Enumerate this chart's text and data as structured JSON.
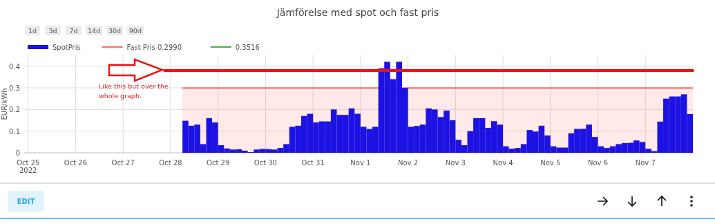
{
  "chart_data": {
    "type": "bar",
    "title": "Jämförelse med spot och fast pris",
    "ylabel": "EUR/kWh",
    "annotations": [
      "1d",
      "3d",
      "7d",
      "14d",
      "30d",
      "90d",
      "Like this but over the whole graph.",
      "EDIT"
    ],
    "xlim": [
      "2022-10-24T22:00",
      "2022-11-08T00:00"
    ],
    "xticks": [
      {
        "value": "2022-10-25",
        "label": "Oct 25\n2022"
      },
      {
        "value": "2022-10-26",
        "label": "Oct 26"
      },
      {
        "value": "2022-10-27",
        "label": "Oct 27"
      },
      {
        "value": "2022-10-28",
        "label": "Oct 28"
      },
      {
        "value": "2022-10-29",
        "label": "Oct 29"
      },
      {
        "value": "2022-10-30",
        "label": "Oct 30"
      },
      {
        "value": "2022-10-31",
        "label": "Oct 31"
      },
      {
        "value": "2022-11-01",
        "label": "Nov 1"
      },
      {
        "value": "2022-11-02",
        "label": "Nov 2"
      },
      {
        "value": "2022-11-03",
        "label": "Nov 3"
      },
      {
        "value": "2022-11-04",
        "label": "Nov 4"
      },
      {
        "value": "2022-11-05",
        "label": "Nov 5"
      },
      {
        "value": "2022-11-06",
        "label": "Nov 6"
      },
      {
        "value": "2022-11-07",
        "label": "Nov 7"
      }
    ],
    "ylim": [
      0,
      0.45
    ],
    "yticks": [
      0,
      0.1,
      0.2,
      0.3,
      0.4
    ],
    "grid": true,
    "legend": "top left",
    "series": [
      {
        "name": "SpotPris",
        "color": "#1c12e3",
        "x": [
          "2022-10-28T06:00",
          "2022-10-28T09:00",
          "2022-10-28T12:00",
          "2022-10-28T15:00",
          "2022-10-28T18:00",
          "2022-10-28T21:00",
          "2022-10-29T00:00",
          "2022-10-29T03:00",
          "2022-10-29T06:00",
          "2022-10-29T09:00",
          "2022-10-29T12:00",
          "2022-10-29T15:00",
          "2022-10-29T18:00",
          "2022-10-29T21:00",
          "2022-10-30T00:00",
          "2022-10-30T03:00",
          "2022-10-30T06:00",
          "2022-10-30T09:00",
          "2022-10-30T12:00",
          "2022-10-30T15:00",
          "2022-10-30T18:00",
          "2022-10-30T21:00",
          "2022-10-31T00:00",
          "2022-10-31T03:00",
          "2022-10-31T06:00",
          "2022-10-31T09:00",
          "2022-10-31T12:00",
          "2022-10-31T15:00",
          "2022-10-31T18:00",
          "2022-10-31T21:00",
          "2022-11-01T00:00",
          "2022-11-01T03:00",
          "2022-11-01T06:00",
          "2022-11-01T09:00",
          "2022-11-01T12:00",
          "2022-11-01T15:00",
          "2022-11-01T18:00",
          "2022-11-01T21:00",
          "2022-11-02T00:00",
          "2022-11-02T03:00",
          "2022-11-02T06:00",
          "2022-11-02T09:00",
          "2022-11-02T12:00",
          "2022-11-02T15:00",
          "2022-11-02T18:00",
          "2022-11-02T21:00",
          "2022-11-03T00:00",
          "2022-11-03T03:00",
          "2022-11-03T06:00",
          "2022-11-03T09:00",
          "2022-11-03T12:00",
          "2022-11-03T15:00",
          "2022-11-03T18:00",
          "2022-11-03T21:00",
          "2022-11-04T00:00",
          "2022-11-04T03:00",
          "2022-11-04T06:00",
          "2022-11-04T09:00",
          "2022-11-04T12:00",
          "2022-11-04T15:00",
          "2022-11-04T18:00",
          "2022-11-04T21:00",
          "2022-11-05T00:00",
          "2022-11-05T03:00",
          "2022-11-05T06:00",
          "2022-11-05T09:00",
          "2022-11-05T12:00",
          "2022-11-05T15:00",
          "2022-11-05T18:00",
          "2022-11-05T21:00",
          "2022-11-06T00:00",
          "2022-11-06T03:00",
          "2022-11-06T06:00",
          "2022-11-06T09:00",
          "2022-11-06T12:00",
          "2022-11-06T15:00",
          "2022-11-06T18:00",
          "2022-11-06T21:00",
          "2022-11-07T00:00",
          "2022-11-07T03:00",
          "2022-11-07T06:00",
          "2022-11-07T09:00",
          "2022-11-07T12:00",
          "2022-11-07T15:00",
          "2022-11-07T18:00",
          "2022-11-07T21:00"
        ],
        "values": [
          0.148,
          0.125,
          0.13,
          0.04,
          0.16,
          0.14,
          0.035,
          0.02,
          0.015,
          0.016,
          0.01,
          0.003,
          0.015,
          0.018,
          0.017,
          0.015,
          0.022,
          0.04,
          0.12,
          0.125,
          0.17,
          0.18,
          0.14,
          0.145,
          0.145,
          0.2,
          0.175,
          0.175,
          0.205,
          0.18,
          0.12,
          0.11,
          0.12,
          0.39,
          0.42,
          0.34,
          0.42,
          0.3,
          0.12,
          0.124,
          0.13,
          0.205,
          0.2,
          0.165,
          0.195,
          0.15,
          0.06,
          0.035,
          0.1,
          0.16,
          0.16,
          0.115,
          0.146,
          0.13,
          0.03,
          0.019,
          0.022,
          0.04,
          0.105,
          0.098,
          0.125,
          0.08,
          0.03,
          0.024,
          0.024,
          0.09,
          0.11,
          0.111,
          0.13,
          0.073,
          0.03,
          0.022,
          0.03,
          0.04,
          0.045,
          0.046,
          0.057,
          0.05,
          0.019,
          0.008,
          0.144,
          0.25,
          0.26,
          0.26,
          0.27,
          0.179
        ]
      },
      {
        "name": "Fast Pris 0.2990",
        "type": "area",
        "color": "#ff3b3b",
        "x": [
          "2022-10-28T06:00",
          "2022-11-08T00:00"
        ],
        "values": [
          0.299,
          0.299
        ]
      },
      {
        "name": "0.3516",
        "type": "line",
        "color": "#109010"
      },
      {
        "type": "line",
        "color": "#ee1111",
        "x": [
          "2022-10-27T21:00",
          "2022-11-08T00:00"
        ],
        "values": [
          0.38,
          0.38
        ]
      }
    ]
  }
}
